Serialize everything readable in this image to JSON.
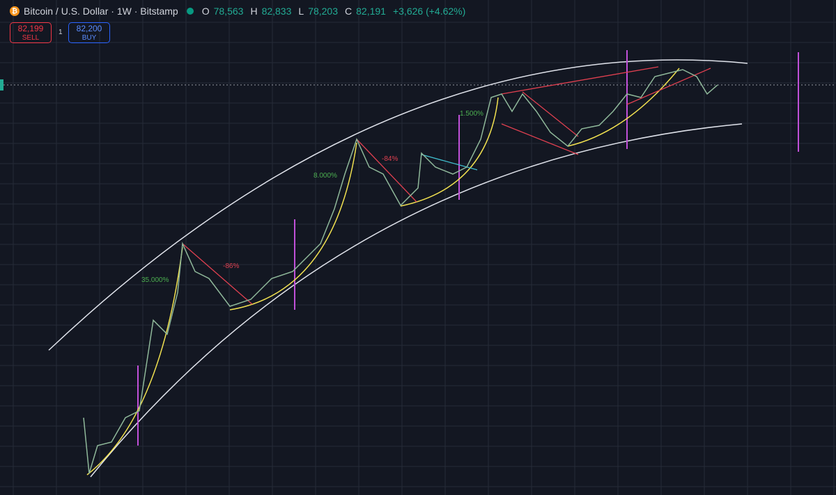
{
  "header": {
    "symbol": "Bitcoin / U.S. Dollar · 1W · Bitstamp",
    "ohlc": [
      {
        "label": "O",
        "value": "78,563"
      },
      {
        "label": "H",
        "value": "82,833"
      },
      {
        "label": "L",
        "value": "78,203"
      },
      {
        "label": "C",
        "value": "82,191"
      }
    ],
    "change": "+3,626 (+4.62%)"
  },
  "trade": {
    "sell_price": "82,199",
    "sell_label": "SELL",
    "spread": "1",
    "buy_price": "82,200",
    "buy_label": "BUY"
  },
  "annotations": [
    "35.000%",
    "-86%",
    "8.000%",
    "-84%",
    "1.500%"
  ]
}
